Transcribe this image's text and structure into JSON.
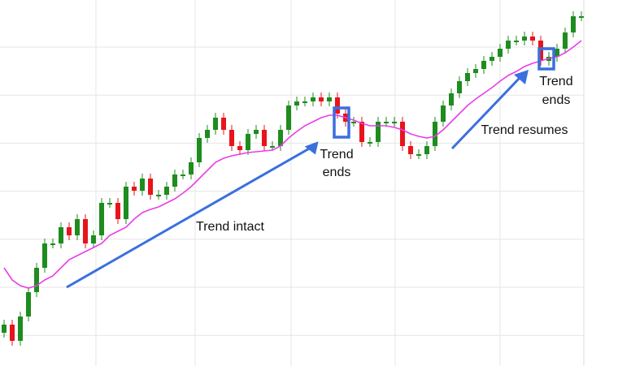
{
  "chart_data": {
    "type": "candlestick",
    "ylim": [
      0,
      451
    ],
    "grid": true,
    "up_color": "#1e8c1e",
    "down_color": "#e8141c",
    "open": [
      41,
      51,
      31,
      61,
      91,
      121,
      151,
      151,
      171,
      161,
      181,
      151,
      161,
      201,
      201,
      181,
      221,
      216,
      231,
      211,
      211,
      221,
      236,
      236,
      251,
      281,
      291,
      306,
      291,
      271,
      266,
      286,
      291,
      271,
      271,
      291,
      321,
      326,
      326,
      331,
      326,
      331,
      311,
      301,
      301,
      276,
      276,
      301,
      301,
      301,
      271,
      261,
      261,
      271,
      301,
      321,
      336,
      351,
      361,
      366,
      376,
      381,
      391,
      401,
      401,
      406,
      401,
      376,
      381,
      391,
      411,
      431
    ],
    "high": [
      57,
      57,
      67,
      97,
      127,
      157,
      157,
      177,
      177,
      187,
      187,
      167,
      207,
      207,
      207,
      227,
      227,
      237,
      237,
      217,
      227,
      242,
      242,
      257,
      287,
      297,
      312,
      312,
      297,
      277,
      292,
      297,
      297,
      277,
      297,
      327,
      332,
      332,
      337,
      337,
      337,
      337,
      317,
      307,
      307,
      282,
      307,
      307,
      307,
      307,
      277,
      267,
      277,
      307,
      327,
      342,
      357,
      367,
      372,
      382,
      387,
      397,
      407,
      407,
      412,
      412,
      407,
      387,
      397,
      417,
      437,
      437
    ],
    "low": [
      35,
      25,
      25,
      55,
      85,
      115,
      145,
      145,
      155,
      155,
      145,
      145,
      155,
      195,
      175,
      175,
      210,
      210,
      205,
      205,
      205,
      215,
      230,
      230,
      245,
      275,
      285,
      285,
      265,
      260,
      260,
      280,
      265,
      265,
      265,
      285,
      315,
      320,
      320,
      320,
      320,
      305,
      295,
      295,
      270,
      270,
      270,
      295,
      295,
      265,
      255,
      255,
      255,
      265,
      295,
      315,
      330,
      345,
      355,
      360,
      370,
      375,
      385,
      395,
      395,
      395,
      370,
      370,
      375,
      385,
      405,
      425
    ],
    "close": [
      51,
      31,
      61,
      91,
      121,
      151,
      151,
      171,
      161,
      181,
      151,
      161,
      201,
      201,
      181,
      221,
      216,
      231,
      211,
      211,
      221,
      236,
      236,
      251,
      281,
      291,
      306,
      291,
      271,
      266,
      286,
      291,
      271,
      271,
      291,
      321,
      326,
      326,
      331,
      326,
      331,
      311,
      301,
      301,
      276,
      276,
      301,
      301,
      301,
      271,
      261,
      261,
      271,
      301,
      321,
      336,
      351,
      361,
      366,
      376,
      381,
      391,
      401,
      401,
      406,
      401,
      376,
      381,
      391,
      411,
      431,
      431
    ],
    "moving_average": {
      "color": "#e83ee8",
      "values": [
        121,
        106,
        99,
        96,
        99,
        106,
        111,
        121,
        131,
        136,
        141,
        146,
        151,
        161,
        166,
        171,
        181,
        189,
        193,
        196,
        201,
        206,
        213,
        221,
        231,
        241,
        251,
        256,
        259,
        261,
        263,
        264,
        265,
        266,
        271,
        281,
        289,
        296,
        301,
        306,
        309,
        309,
        306,
        303,
        299,
        296,
        296,
        296,
        294,
        291,
        286,
        283,
        281,
        283,
        291,
        301,
        311,
        321,
        329,
        336,
        343,
        351,
        358,
        363,
        369,
        373,
        376,
        379,
        381,
        386,
        393,
        401
      ]
    },
    "annotations": [
      {
        "text": "Trend intact"
      },
      {
        "lines": [
          "Trend",
          "ends"
        ]
      },
      {
        "lines": [
          "Trend",
          "ends"
        ]
      },
      {
        "text": "Trend resumes"
      }
    ]
  }
}
